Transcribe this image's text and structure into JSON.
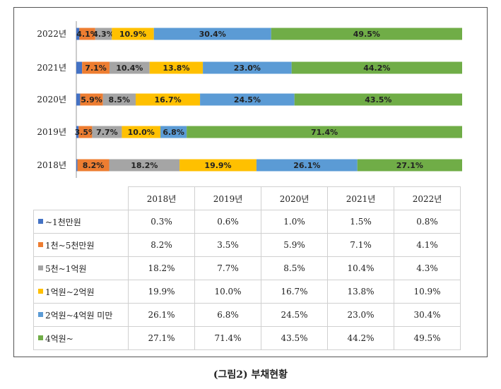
{
  "caption": "(그림2) 부채현황",
  "chart_data": {
    "type": "bar",
    "orientation": "horizontal",
    "stacked": true,
    "percent": true,
    "categories": [
      "2022년",
      "2021년",
      "2020년",
      "2019년",
      "2018년"
    ],
    "series": [
      {
        "name": "~1천만원",
        "color": "#4472C4",
        "values": [
          0.8,
          1.5,
          1.0,
          0.6,
          0.3
        ],
        "labels": [
          "",
          "",
          "",
          "",
          ""
        ]
      },
      {
        "name": "1천~5천만원",
        "color": "#ED7D31",
        "values": [
          4.1,
          7.1,
          5.9,
          3.5,
          8.2
        ],
        "labels": [
          "4.1%",
          "7.1%",
          "5.9%",
          "3.5%",
          "8.2%"
        ]
      },
      {
        "name": "5천~1억원",
        "color": "#A5A5A5",
        "values": [
          4.3,
          10.4,
          8.5,
          7.7,
          18.2
        ],
        "labels": [
          "4.3%",
          "10.4%",
          "8.5%",
          "7.7%",
          "18.2%"
        ]
      },
      {
        "name": "1억원~2억원",
        "color": "#FFC000",
        "values": [
          10.9,
          13.8,
          16.7,
          10.0,
          19.9
        ],
        "labels": [
          "10.9%",
          "13.8%",
          "16.7%",
          "10.0%",
          "19.9%"
        ]
      },
      {
        "name": "2억원~4억원 미만",
        "color": "#5B9BD5",
        "values": [
          30.4,
          23.0,
          24.5,
          6.8,
          26.1
        ],
        "labels": [
          "30.4%",
          "23.0%",
          "24.5%",
          "6.8%",
          "26.1%"
        ]
      },
      {
        "name": "4억원~",
        "color": "#70AD47",
        "values": [
          49.5,
          44.2,
          43.5,
          71.4,
          27.1
        ],
        "labels": [
          "49.5%",
          "44.2%",
          "43.5%",
          "71.4%",
          "27.1%"
        ]
      }
    ]
  },
  "table": {
    "years": [
      "2018년",
      "2019년",
      "2020년",
      "2021년",
      "2022년"
    ],
    "rows": [
      {
        "label": "~1천만원",
        "color": "#4472C4",
        "values": [
          "0.3%",
          "0.6%",
          "1.0%",
          "1.5%",
          "0.8%"
        ]
      },
      {
        "label": "1천~5천만원",
        "color": "#ED7D31",
        "values": [
          "8.2%",
          "3.5%",
          "5.9%",
          "7.1%",
          "4.1%"
        ]
      },
      {
        "label": "5천~1억원",
        "color": "#A5A5A5",
        "values": [
          "18.2%",
          "7.7%",
          "8.5%",
          "10.4%",
          "4.3%"
        ]
      },
      {
        "label": "1억원~2억원",
        "color": "#FFC000",
        "values": [
          "19.9%",
          "10.0%",
          "16.7%",
          "13.8%",
          "10.9%"
        ]
      },
      {
        "label": "2억원~4억원 미만",
        "color": "#5B9BD5",
        "values": [
          "26.1%",
          "6.8%",
          "24.5%",
          "23.0%",
          "30.4%"
        ]
      },
      {
        "label": "4억원~",
        "color": "#70AD47",
        "values": [
          "27.1%",
          "71.4%",
          "43.5%",
          "44.2%",
          "49.5%"
        ]
      }
    ]
  }
}
